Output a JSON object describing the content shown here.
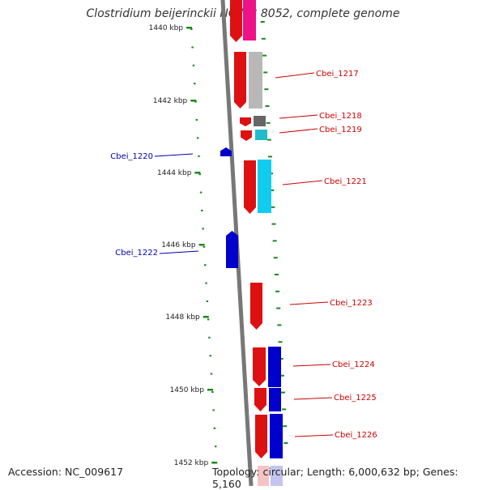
{
  "header": {
    "title": "Clostridium beijerinckii NCIMB 8052, complete genome"
  },
  "footer": {
    "accession": "Accession: NC_009617",
    "info": "Topology: circular; Length: 6,000,632 bp; Genes: 5,160"
  },
  "scale": {
    "ticks": [
      "1440 kbp",
      "1442 kbp",
      "1444 kbp",
      "1446 kbp",
      "1448 kbp",
      "1450 kbp",
      "1452 kbp"
    ]
  },
  "genes": [
    {
      "label": "Cbei_1217",
      "strand": "plus",
      "color": "#dd1111"
    },
    {
      "label": "Cbei_1218",
      "strand": "plus",
      "color": "#dd1111"
    },
    {
      "label": "Cbei_1219",
      "strand": "plus",
      "color": "#dd1111"
    },
    {
      "label": "Cbei_1220",
      "strand": "minus",
      "color": "#0000cc"
    },
    {
      "label": "Cbei_1221",
      "strand": "plus",
      "color": "#dd1111"
    },
    {
      "label": "Cbei_1222",
      "strand": "minus",
      "color": "#0000cc"
    },
    {
      "label": "Cbei_1223",
      "strand": "plus",
      "color": "#dd1111"
    },
    {
      "label": "Cbei_1224",
      "strand": "plus",
      "color": "#dd1111"
    },
    {
      "label": "Cbei_1225",
      "strand": "plus",
      "color": "#dd1111"
    },
    {
      "label": "Cbei_1226",
      "strand": "plus",
      "color": "#dd1111"
    }
  ],
  "colors": {
    "plus_strand": "#dd1111",
    "minus_strand": "#0000cc",
    "backbone": "#777777",
    "ticks": "#1a8a1a",
    "label_plus": "#cc0000",
    "label_minus": "#0000aa"
  }
}
